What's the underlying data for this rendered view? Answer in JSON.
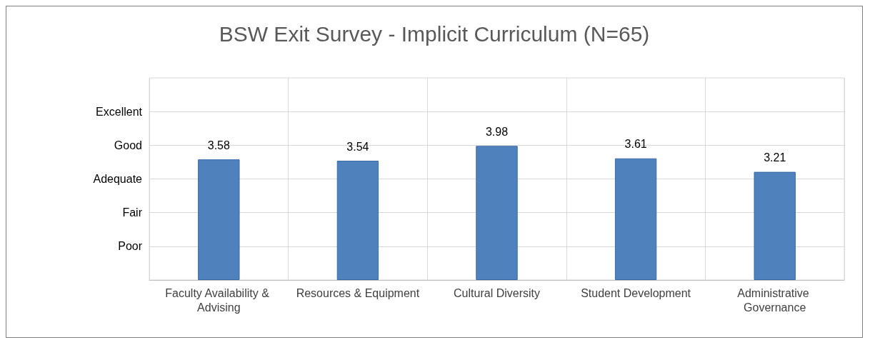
{
  "chart_data": {
    "type": "bar",
    "title": "BSW Exit Survey - Implicit Curriculum (N=65)",
    "categories": [
      "Faculty Availability & Advising",
      "Resources & Equipment",
      "Cultural Diversity",
      "Student Development",
      "Administrative Governance"
    ],
    "values": [
      3.58,
      3.54,
      3.98,
      3.61,
      3.21
    ],
    "color": "#4f81bd",
    "ylim": [
      0,
      6
    ],
    "ref_lines": [
      {
        "axis": "y",
        "value": 1,
        "label": "Poor",
        "color": "#d9d9d9"
      },
      {
        "axis": "y",
        "value": 2,
        "label": "Fair",
        "color": "#d9d9d9"
      },
      {
        "axis": "y",
        "value": 3,
        "label": "Adequate",
        "color": "#d9d9d9"
      },
      {
        "axis": "y",
        "value": 4,
        "label": "Good",
        "color": "#d9d9d9"
      },
      {
        "axis": "y",
        "value": 5,
        "label": "Excellent",
        "color": "#d9d9d9"
      }
    ],
    "grid": "x",
    "data_labels": true
  }
}
